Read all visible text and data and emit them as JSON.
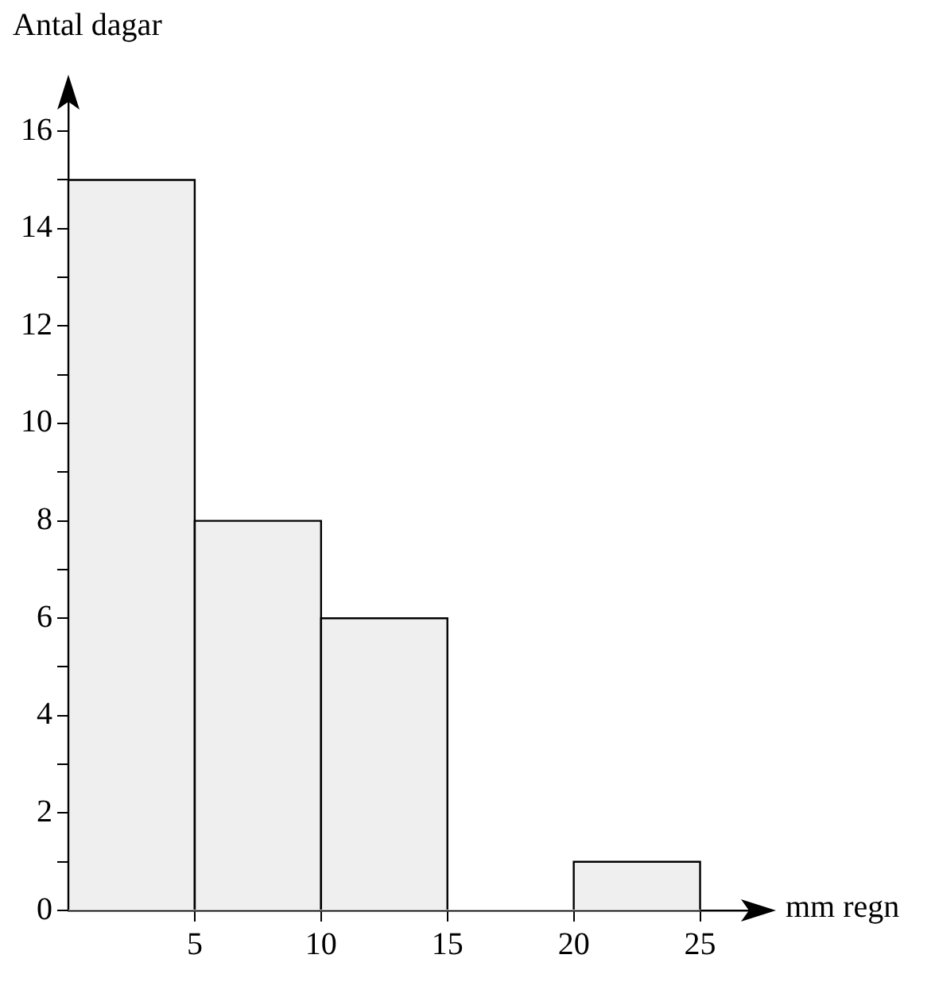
{
  "chart_data": {
    "type": "histogram",
    "xlabel": "mm regn",
    "ylabel": "Antal dagar",
    "bins": [
      0,
      5,
      10,
      15,
      20,
      25
    ],
    "values": [
      15,
      8,
      6,
      0,
      1
    ],
    "color": "#efefef",
    "xlim": [
      0,
      27.5
    ],
    "ylim": [
      0,
      16.9
    ],
    "xticks": [
      5,
      10,
      15,
      20,
      25
    ],
    "yticks": [
      0,
      {
        "value": 1,
        "label": null
      },
      2,
      {
        "value": 3,
        "label": null
      },
      4,
      {
        "value": 5,
        "label": null
      },
      6,
      {
        "value": 7,
        "label": null
      },
      8,
      {
        "value": 9,
        "label": null
      },
      10,
      {
        "value": 11,
        "label": null
      },
      12,
      {
        "value": 13,
        "label": null
      },
      14,
      {
        "value": 15,
        "label": null
      },
      16
    ],
    "grid": false
  }
}
